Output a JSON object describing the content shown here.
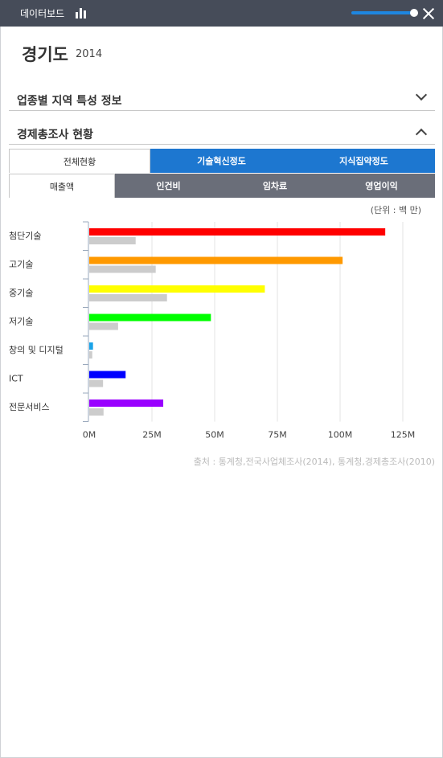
{
  "header": {
    "title": "데이터보드",
    "icon": "bar-chart-icon",
    "slider_value_pct": 95,
    "close_icon": "close-icon"
  },
  "region": {
    "name": "경기도",
    "year": "2014"
  },
  "sections": [
    {
      "label": "업종별 지역 특성 정보",
      "state": "collapsed"
    },
    {
      "label": "경제총조사 현황",
      "state": "expanded"
    }
  ],
  "tabs_main": [
    {
      "label": "전체현황",
      "active": false
    },
    {
      "label": "기술혁신정도",
      "active": true
    },
    {
      "label": "지식집약정도",
      "active": true
    }
  ],
  "tabs_sub": [
    {
      "label": "매출액",
      "active": true
    },
    {
      "label": "인건비",
      "active": false
    },
    {
      "label": "임차료",
      "active": false
    },
    {
      "label": "영업이익",
      "active": false
    }
  ],
  "unit_label": "(단위 : 백 만)",
  "source": "출처 : 통계청,전국사업체조사(2014), 통계청,경제총조사(2010)",
  "chart_data": {
    "type": "bar",
    "orientation": "horizontal",
    "categories": [
      "첨단기술",
      "고기술",
      "중기술",
      "저기술",
      "창의 및 디지털",
      "ICT",
      "전문서비스"
    ],
    "series": [
      {
        "values": [
          118,
          101,
          70,
          48.5,
          1.5,
          14.5,
          29.5
        ],
        "colors": [
          "#ff0000",
          "#ff9900",
          "#ffff00",
          "#00ff00",
          "#1aa3e8",
          "#0000ff",
          "#9900ff"
        ]
      },
      {
        "values": [
          18.5,
          26.5,
          31,
          11.5,
          1.2,
          5.5,
          5.7
        ],
        "color": "#cccccc"
      }
    ],
    "xticks": [
      "0M",
      "25M",
      "50M",
      "75M",
      "100M",
      "125M"
    ],
    "xlim": [
      0,
      125
    ],
    "grid": true
  }
}
